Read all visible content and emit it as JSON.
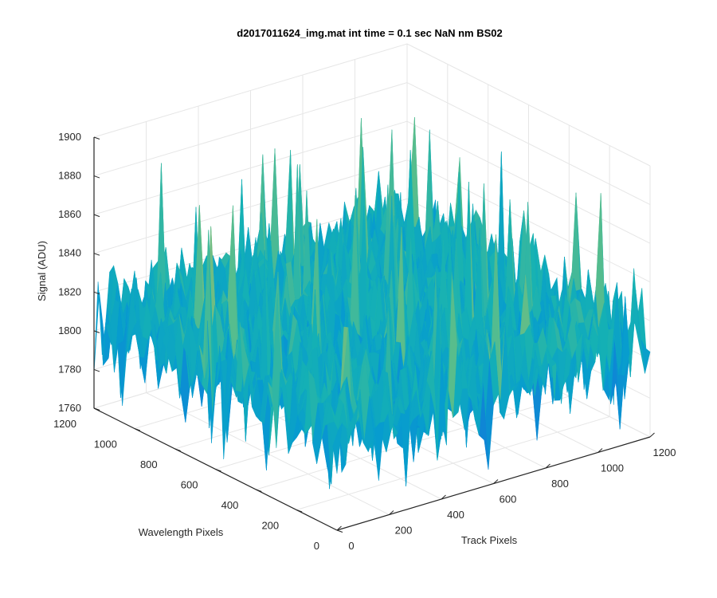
{
  "chart_data": {
    "type": "surface",
    "title": "d2017011624_img.mat int time = 0.1 sec  NaN nm BS02",
    "xlabel": "Track Pixels",
    "ylabel": "Wavelength Pixels",
    "zlabel": "Signal (ADU)",
    "xlim": [
      0,
      1200
    ],
    "ylim": [
      0,
      1200
    ],
    "zlim": [
      1760,
      1900
    ],
    "xticks": [
      "0",
      "200",
      "400",
      "600",
      "800",
      "1000",
      "1200"
    ],
    "yticks": [
      "0",
      "200",
      "400",
      "600",
      "800",
      "1000",
      "1200"
    ],
    "zticks": [
      "1760",
      "1780",
      "1800",
      "1820",
      "1840",
      "1860",
      "1880",
      "1900"
    ],
    "grid": true,
    "colormap": "parula",
    "surface": {
      "mean": 1808,
      "noise_amplitude": 25,
      "spike_max": 1888,
      "min": 1765
    }
  }
}
